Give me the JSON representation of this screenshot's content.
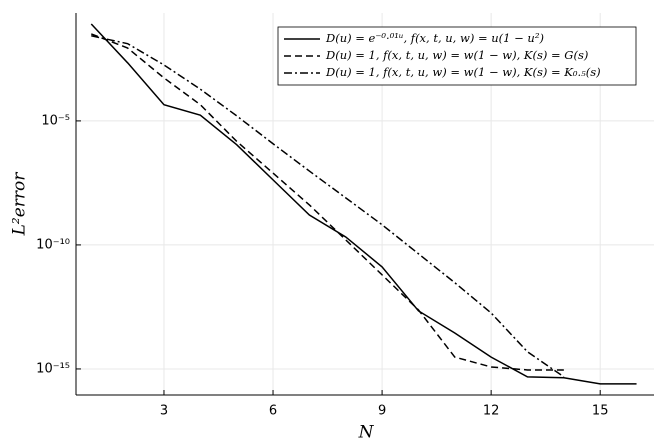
{
  "chart_data": {
    "type": "line",
    "x_label": "N",
    "y_label": "L²error",
    "y_log": true,
    "grid": true,
    "legend": "top-right",
    "xlim": [
      0.58,
      16.48
    ],
    "xticks": [
      3,
      6,
      9,
      12,
      15
    ],
    "ylim": [
      8.9e-17,
      0.224
    ],
    "yticks": [
      {
        "value": 1e-05,
        "label": "10⁻⁵"
      },
      {
        "value": 1e-10,
        "label": "10⁻¹⁰"
      },
      {
        "value": 1e-15,
        "label": "10⁻¹⁵"
      }
    ],
    "series": [
      {
        "name": "D(u) = e⁻⁰·⁰¹ᵘ, f(x, t, u, w) = u(1 − u²)",
        "color": "#000000",
        "style": "solid",
        "x": [
          1,
          2,
          3,
          4,
          5,
          6,
          7,
          8,
          9,
          10,
          11,
          12,
          13,
          14,
          15,
          16
        ],
        "values": [
          0.081,
          0.0022,
          4.5e-05,
          1.7e-05,
          1.1e-06,
          4.2e-08,
          1.6e-09,
          2.1e-10,
          1.3e-11,
          2.2e-13,
          2.8e-14,
          3e-15,
          4.8e-16,
          4.4e-16,
          2.5e-16,
          2.5e-16
        ]
      },
      {
        "name": "D(u) = 1, f(x, t, u, w) = w(1 − w), K(s) = G(s)",
        "color": "#000000",
        "style": "dash",
        "x": [
          1,
          2,
          3,
          4,
          5,
          6,
          7,
          8,
          9,
          10,
          11,
          12,
          13,
          14
        ],
        "values": [
          0.032,
          0.0087,
          0.00054,
          4.5e-05,
          1.5e-06,
          7.9e-08,
          4.1e-09,
          1.6e-10,
          6.2e-12,
          2.4e-13,
          3e-15,
          1.2e-15,
          9.1e-16,
          9.1e-16
        ]
      },
      {
        "name": "D(u) = 1, f(x, t, u, w) = w(1 − w), K(s) = K₀.₅(s)",
        "color": "#000000",
        "style": "dashdot",
        "x": [
          1,
          2,
          3,
          4,
          5,
          6,
          7,
          8,
          9,
          10,
          11,
          12,
          13,
          14
        ],
        "values": [
          0.027,
          0.013,
          0.0018,
          0.00019,
          1.6e-05,
          1.2e-06,
          9.5e-08,
          7.9e-09,
          6.5e-10,
          4.4e-11,
          3e-12,
          1.8e-13,
          4.9e-15,
          4.8e-16
        ]
      }
    ]
  }
}
